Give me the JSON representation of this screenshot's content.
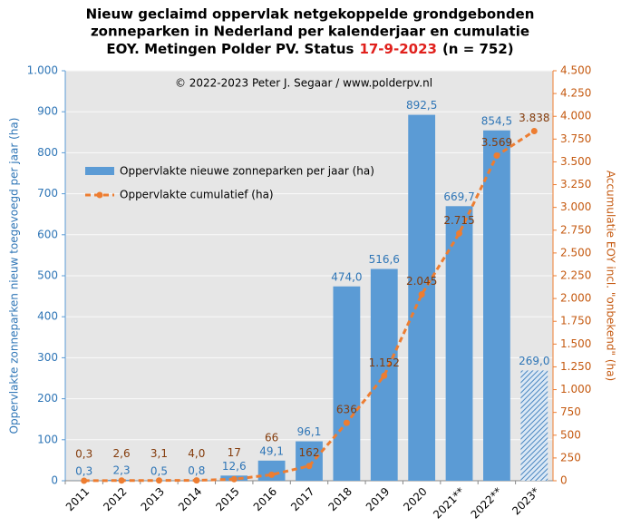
{
  "chart_data": {
    "type": "bar_line",
    "title": {
      "lines": [
        "Nieuw geclaimd oppervlak netgekoppelde grondgebonden",
        "zonneparken in Nederland per kalenderjaar en cumulatie"
      ],
      "line3": [
        "EOY. Metingen Polder PV. Status",
        "17-9-2023",
        "(n = 752)"
      ]
    },
    "annotation": "© 2022-2023  Peter J. Segaar / www.polderpv.nl",
    "ylabel": "Oppervlakte zonneparken nieuw toegevoegd per jaar (ha)",
    "y2label": "Accumulatie EOY incl. \"onbekend\" (ha)",
    "categories": [
      "2011",
      "2012",
      "2013",
      "2014",
      "2015",
      "2016",
      "2017",
      "2018",
      "2019",
      "2020",
      "2021**",
      "2022**",
      "2023*"
    ],
    "series": [
      {
        "name": "Oppervlakte nieuwe zonneparken per jaar (ha)",
        "color": "#5b9bd5",
        "hatch": "2023*",
        "values": [
          0.3,
          2.3,
          0.5,
          0.8,
          12.6,
          49.1,
          96.1,
          474.0,
          516.6,
          892.5,
          669.7,
          854.5,
          269.0
        ],
        "value_labels": [
          "0,3",
          "2,3",
          "0,5",
          "0,8",
          "12,6",
          "49,1",
          "96,1",
          "474,0",
          "516,6",
          "892,5",
          "669,7",
          "854,5",
          "269,0"
        ]
      },
      {
        "name": "Oppervlakte cumulatief (ha)",
        "color": "#ed7d31",
        "axis": "y2",
        "values": [
          0.3,
          2.6,
          3.1,
          4.0,
          17,
          66,
          162,
          636,
          1152,
          2045,
          2715,
          3569,
          3838
        ],
        "value_labels": [
          "0,3",
          "2,6",
          "3,1",
          "4,0",
          "17",
          "66",
          "162",
          "636",
          "1.152",
          "2.045",
          "2.715",
          "3.569",
          "3.838"
        ]
      }
    ],
    "ylim": [
      0,
      1000
    ],
    "yticks": [
      0,
      100,
      200,
      300,
      400,
      500,
      600,
      700,
      800,
      900,
      {
        "value": 1000,
        "label": "1.000"
      }
    ],
    "y2lim": [
      0,
      4500
    ],
    "y2ticks": [
      0,
      250,
      500,
      750,
      {
        "value": 1000,
        "label": "1.000"
      },
      {
        "value": 1250,
        "label": "1.250"
      },
      {
        "value": 1500,
        "label": "1.500"
      },
      {
        "value": 1750,
        "label": "1.750"
      },
      {
        "value": 2000,
        "label": "2.000"
      },
      {
        "value": 2250,
        "label": "2.250"
      },
      {
        "value": 2500,
        "label": "2.500"
      },
      {
        "value": 2750,
        "label": "2.750"
      },
      {
        "value": 3000,
        "label": "3.000"
      },
      {
        "value": 3250,
        "label": "3.250"
      },
      {
        "value": 3500,
        "label": "3.500"
      },
      {
        "value": 3750,
        "label": "3.750"
      },
      {
        "value": 4000,
        "label": "4.000"
      },
      {
        "value": 4250,
        "label": "4.250"
      },
      {
        "value": 4500,
        "label": "4.500"
      }
    ],
    "grid": true
  }
}
